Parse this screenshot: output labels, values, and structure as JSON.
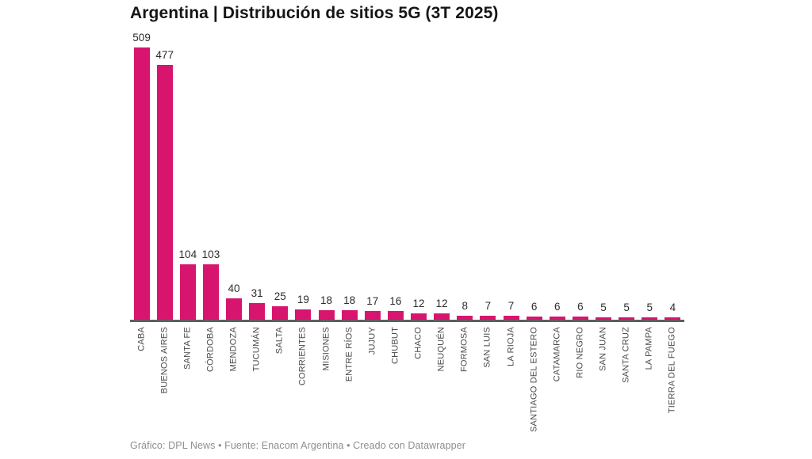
{
  "header": {
    "title": "Argentina | Distribución de sitios 5G (3T 2025)"
  },
  "chart_data": {
    "type": "bar",
    "title": "Argentina | Distribución de sitios 5G (3T 2025)",
    "categories": [
      "CABA",
      "BUENOS AIRES",
      "SANTA FE",
      "CÓRDOBA",
      "MENDOZA",
      "TUCUMÁN",
      "SALTA",
      "CORRIENTES",
      "MISIONES",
      "ENTRE RÍOS",
      "JUJUY",
      "CHUBUT",
      "CHACO",
      "NEUQUÉN",
      "FORMOSA",
      "SAN LUIS",
      "LA RIOJA",
      "SANTIAGO DEL ESTERO",
      "CATAMARCA",
      "RIO NEGRO",
      "SAN JUAN",
      "SANTA CRUZ",
      "LA PAMPA",
      "TIERRA DEL FUEGO"
    ],
    "values": [
      509,
      477,
      104,
      103,
      40,
      31,
      25,
      19,
      18,
      18,
      17,
      16,
      12,
      12,
      8,
      7,
      7,
      6,
      6,
      6,
      5,
      5,
      5,
      4
    ],
    "xlabel": "",
    "ylabel": "",
    "ylim": [
      0,
      509
    ],
    "grid": false,
    "legend": "none",
    "value_labels": "above-bars",
    "tick_label_rotation": -90,
    "bar_color": "#d8156e",
    "value_label_color": "#2d2d2d",
    "tick_label_color": "#4b4b4b",
    "axis_line_color": "#5e5e5e"
  },
  "footer": {
    "credit": "Gráfico: DPL News • Fuente: Enacom Argentina • Creado con Datawrapper"
  }
}
